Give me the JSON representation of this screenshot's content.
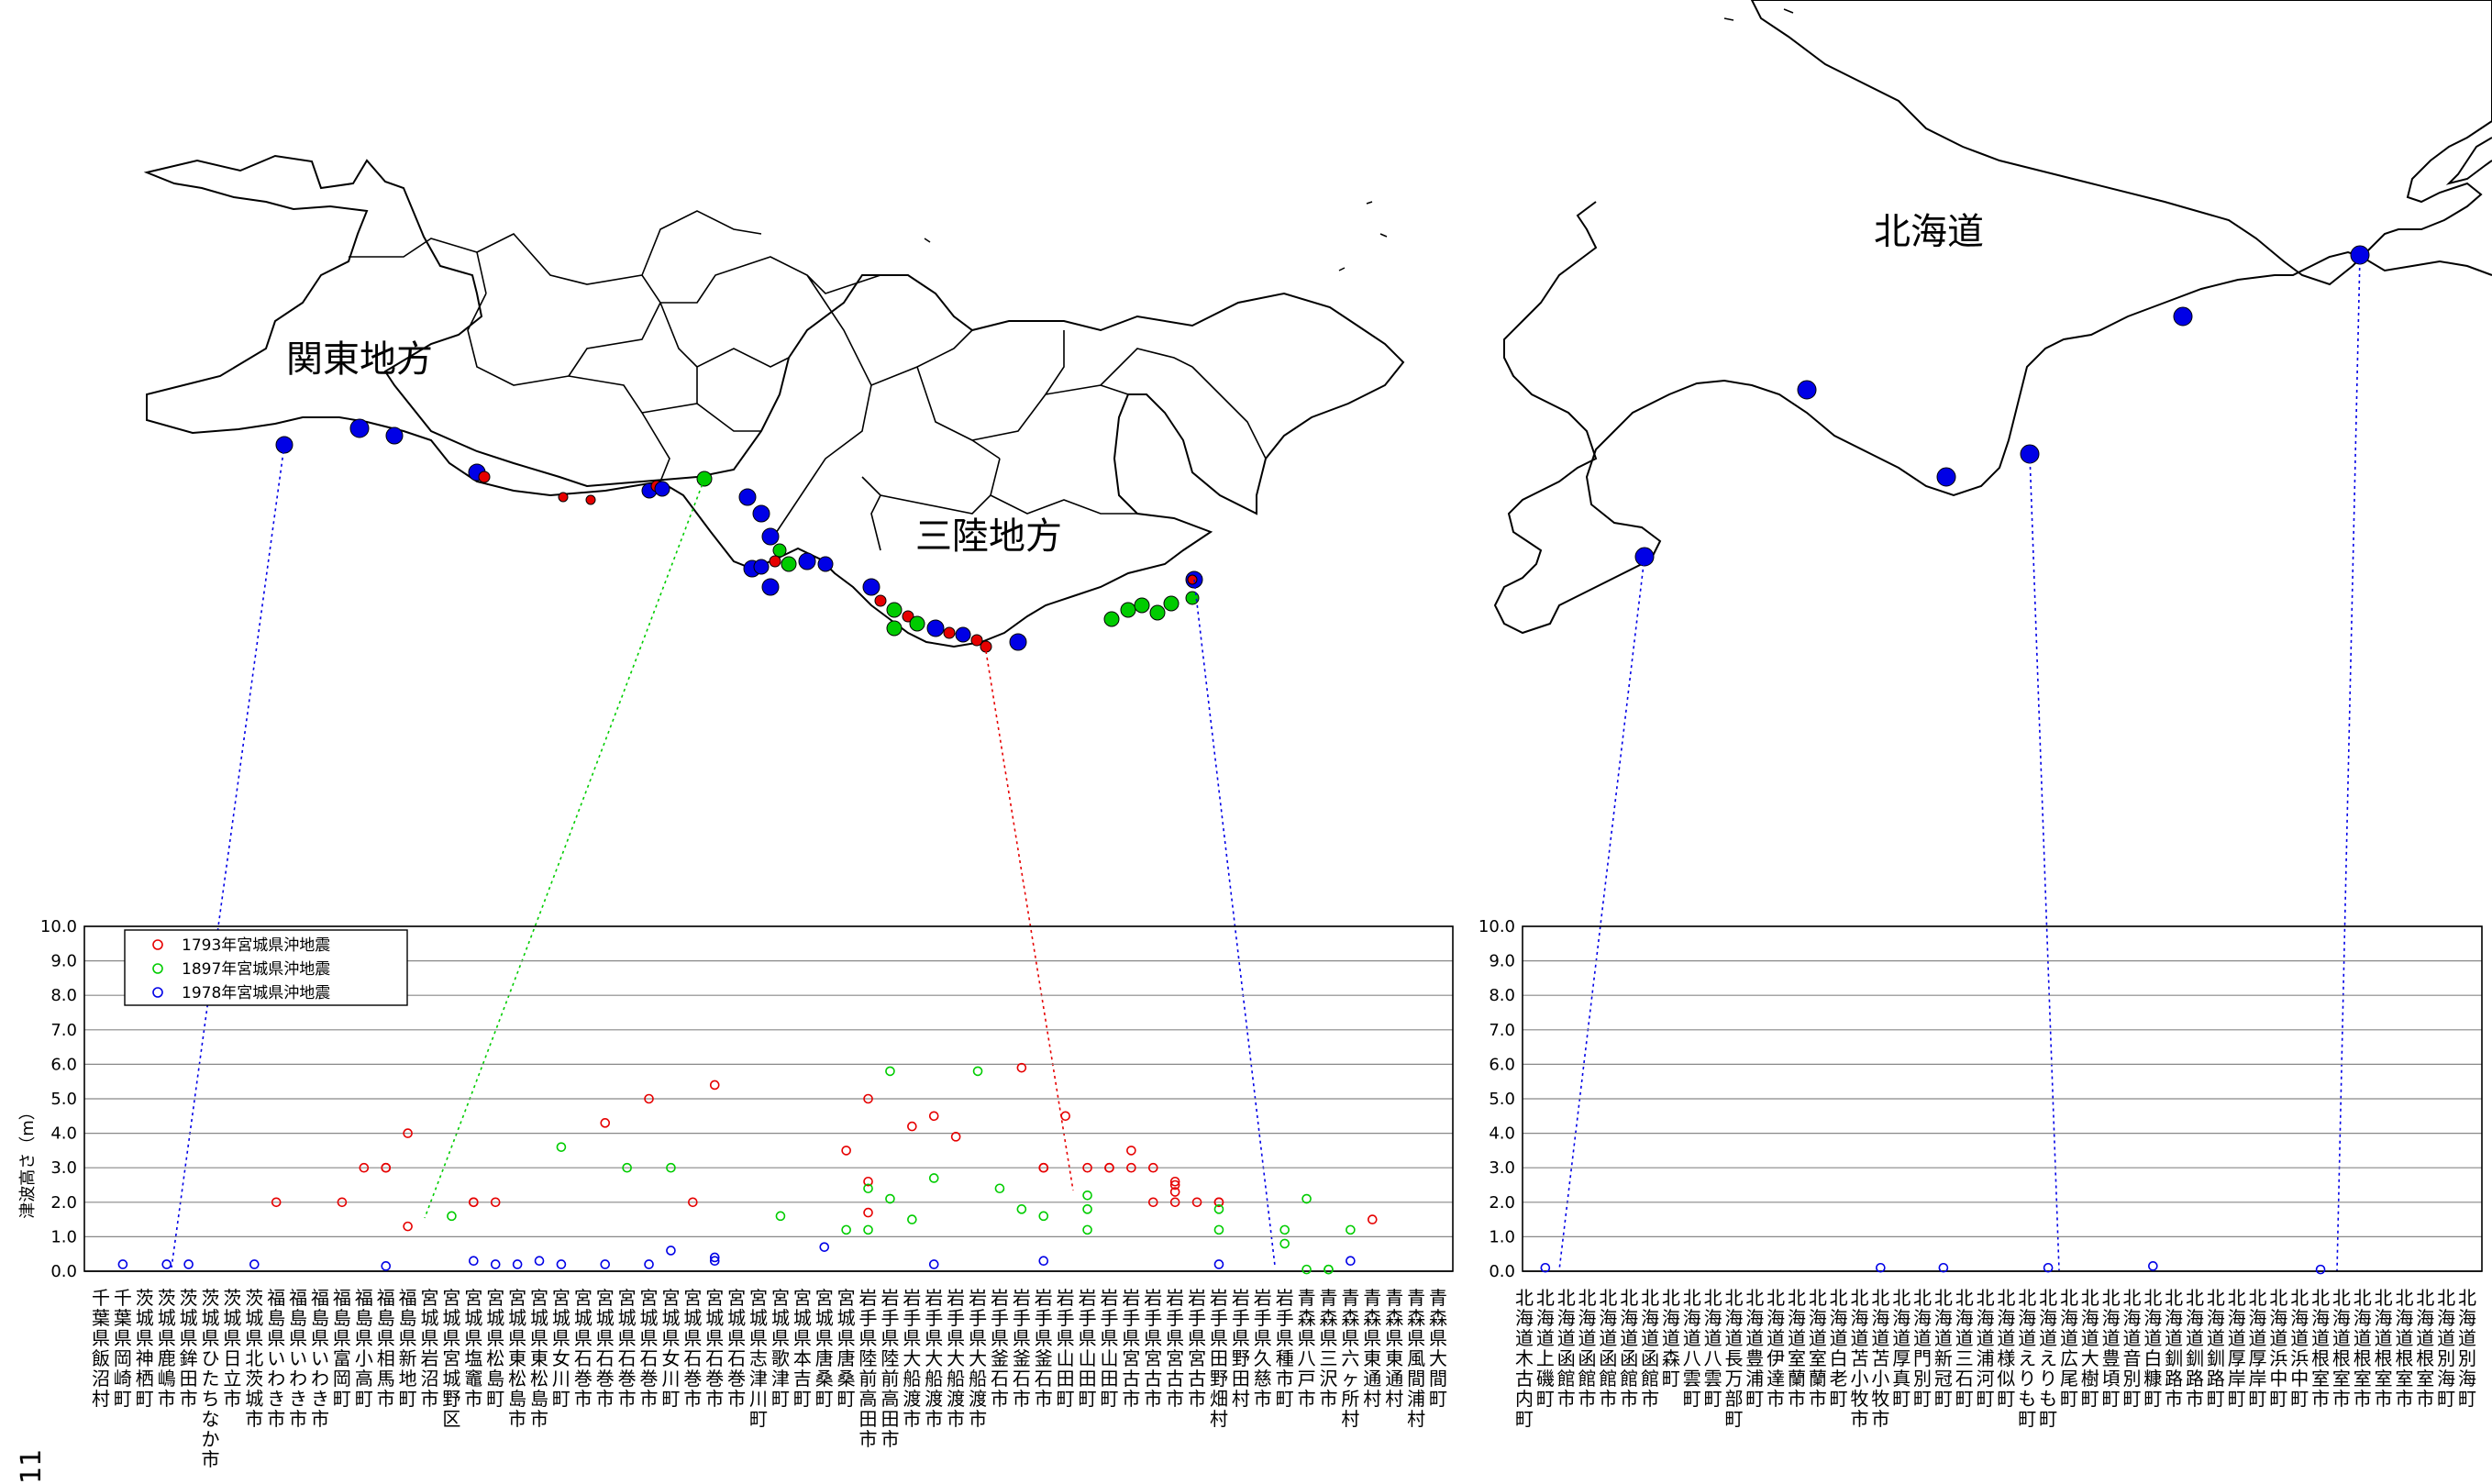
{
  "map": {
    "region_kanto": "関東地方",
    "region_sanriku": "三陸地方",
    "region_hokkaido": "北海道"
  },
  "page_number": "11",
  "chart_data": [
    {
      "type": "scatter",
      "ylabel": "津波高さ（m）",
      "ylim": [
        0,
        10
      ],
      "yticks": [
        "0.0",
        "1.0",
        "2.0",
        "3.0",
        "4.0",
        "5.0",
        "6.0",
        "7.0",
        "8.0",
        "9.0",
        "10.0"
      ],
      "grid": true,
      "legend_position": "top-left",
      "series": [
        {
          "name": "1793年宮城県沖地震",
          "color": "#e60000"
        },
        {
          "name": "1897年宮城県沖地震",
          "color": "#00cc00"
        },
        {
          "name": "1978年宮城県沖地震",
          "color": "#0000e6"
        }
      ],
      "categories": [
        "千葉県飯沼村",
        "千葉県岡崎町",
        "茨城県神栖町",
        "茨城県鹿嶋市",
        "茨城県鉾田市",
        "茨城県ひたちなか市",
        "茨城県日立市",
        "茨城県北茨城市",
        "福島県いわき市",
        "福島県いわき市",
        "福島県いわき市",
        "福島県富岡町",
        "福島県小高町",
        "福島県相馬市",
        "福島県新地町",
        "宮城県岩沼市",
        "宮城県宮城野区",
        "宮城県塩竈市",
        "宮城県松島町",
        "宮城県東松島市",
        "宮城県東松島市",
        "宮城県女川町",
        "宮城県石巻市",
        "宮城県石巻市",
        "宮城県石巻市",
        "宮城県石巻市",
        "宮城県女川町",
        "宮城県石巻市",
        "宮城県石巻市",
        "宮城県石巻市",
        "宮城県志津川町",
        "宮城県歌津町",
        "宮城県本吉町",
        "宮城県唐桑町",
        "宮城県唐桑町",
        "岩手県陸前高田市",
        "岩手県陸前高田市",
        "岩手県大船渡市",
        "岩手県大船渡市",
        "岩手県大船渡市",
        "岩手県大船渡市",
        "岩手県釜石市",
        "岩手県釜石市",
        "岩手県釜石市",
        "岩手県山田町",
        "岩手県山田町",
        "岩手県山田町",
        "岩手県宮古市",
        "岩手県宮古市",
        "岩手県宮古市",
        "岩手県宮古市",
        "岩手県田野畑村",
        "岩手県野田村",
        "岩手県久慈市",
        "岩手県種市町",
        "青森県八戸市",
        "青森県三沢市",
        "青森県六ヶ所村",
        "青森県東通村",
        "青森県東通村",
        "青森県風間浦村",
        "青森県大間町"
      ],
      "points": [
        {
          "series": 0,
          "x": 8,
          "y": 2.0
        },
        {
          "series": 0,
          "x": 11,
          "y": 2.0
        },
        {
          "series": 0,
          "x": 12,
          "y": 3.0
        },
        {
          "series": 0,
          "x": 13,
          "y": 3.0
        },
        {
          "series": 0,
          "x": 13,
          "y": 3.0
        },
        {
          "series": 0,
          "x": 14,
          "y": 4.0
        },
        {
          "series": 0,
          "x": 14,
          "y": 1.3
        },
        {
          "series": 0,
          "x": 17,
          "y": 2.0
        },
        {
          "series": 0,
          "x": 17,
          "y": 2.0
        },
        {
          "series": 0,
          "x": 18,
          "y": 2.0
        },
        {
          "series": 0,
          "x": 23,
          "y": 4.3
        },
        {
          "series": 0,
          "x": 25,
          "y": 5.0
        },
        {
          "series": 0,
          "x": 27,
          "y": 2.0
        },
        {
          "series": 0,
          "x": 28,
          "y": 5.4
        },
        {
          "series": 0,
          "x": 34,
          "y": 3.5
        },
        {
          "series": 0,
          "x": 35,
          "y": 5.0
        },
        {
          "series": 0,
          "x": 35,
          "y": 2.6
        },
        {
          "series": 0,
          "x": 35,
          "y": 1.7
        },
        {
          "series": 0,
          "x": 37,
          "y": 4.2
        },
        {
          "series": 0,
          "x": 38,
          "y": 4.5
        },
        {
          "series": 0,
          "x": 39,
          "y": 3.9
        },
        {
          "series": 0,
          "x": 42,
          "y": 5.9
        },
        {
          "series": 0,
          "x": 43,
          "y": 3.0
        },
        {
          "series": 0,
          "x": 43,
          "y": 3.0
        },
        {
          "series": 0,
          "x": 44,
          "y": 4.5
        },
        {
          "series": 0,
          "x": 45,
          "y": 3.0
        },
        {
          "series": 0,
          "x": 46,
          "y": 3.0
        },
        {
          "series": 0,
          "x": 46,
          "y": 3.0
        },
        {
          "series": 0,
          "x": 47,
          "y": 3.0
        },
        {
          "series": 0,
          "x": 47,
          "y": 3.5
        },
        {
          "series": 0,
          "x": 48,
          "y": 3.0
        },
        {
          "series": 0,
          "x": 48,
          "y": 2.0
        },
        {
          "series": 0,
          "x": 49,
          "y": 2.5
        },
        {
          "series": 0,
          "x": 49,
          "y": 2.3
        },
        {
          "series": 0,
          "x": 49,
          "y": 2.6
        },
        {
          "series": 0,
          "x": 49,
          "y": 2.0
        },
        {
          "series": 0,
          "x": 50,
          "y": 2.0
        },
        {
          "series": 0,
          "x": 51,
          "y": 2.0
        },
        {
          "series": 0,
          "x": 51,
          "y": 2.0
        },
        {
          "series": 0,
          "x": 58,
          "y": 1.5
        },
        {
          "series": 1,
          "x": 16,
          "y": 1.6
        },
        {
          "series": 1,
          "x": 21,
          "y": 3.6
        },
        {
          "series": 1,
          "x": 24,
          "y": 3.0
        },
        {
          "series": 1,
          "x": 26,
          "y": 3.0
        },
        {
          "series": 1,
          "x": 31,
          "y": 1.6
        },
        {
          "series": 1,
          "x": 34,
          "y": 1.2
        },
        {
          "series": 1,
          "x": 35,
          "y": 2.4
        },
        {
          "series": 1,
          "x": 35,
          "y": 1.2
        },
        {
          "series": 1,
          "x": 36,
          "y": 5.8
        },
        {
          "series": 1,
          "x": 36,
          "y": 2.1
        },
        {
          "series": 1,
          "x": 37,
          "y": 1.5
        },
        {
          "series": 1,
          "x": 38,
          "y": 2.7
        },
        {
          "series": 1,
          "x": 40,
          "y": 5.8
        },
        {
          "series": 1,
          "x": 41,
          "y": 2.4
        },
        {
          "series": 1,
          "x": 42,
          "y": 1.8
        },
        {
          "series": 1,
          "x": 43,
          "y": 1.6
        },
        {
          "series": 1,
          "x": 45,
          "y": 2.2
        },
        {
          "series": 1,
          "x": 45,
          "y": 1.8
        },
        {
          "series": 1,
          "x": 45,
          "y": 1.2
        },
        {
          "series": 1,
          "x": 51,
          "y": 1.8
        },
        {
          "series": 1,
          "x": 51,
          "y": 1.2
        },
        {
          "series": 1,
          "x": 54,
          "y": 1.2
        },
        {
          "series": 1,
          "x": 54,
          "y": 0.8
        },
        {
          "series": 1,
          "x": 55,
          "y": 2.1
        },
        {
          "series": 1,
          "x": 55,
          "y": 0.05
        },
        {
          "series": 1,
          "x": 56,
          "y": 0.05
        },
        {
          "series": 1,
          "x": 56,
          "y": 0.05
        },
        {
          "series": 1,
          "x": 57,
          "y": 1.2
        },
        {
          "series": 2,
          "x": 1,
          "y": 0.2
        },
        {
          "series": 2,
          "x": 3,
          "y": 0.2
        },
        {
          "series": 2,
          "x": 4,
          "y": 0.2
        },
        {
          "series": 2,
          "x": 7,
          "y": 0.2
        },
        {
          "series": 2,
          "x": 13,
          "y": 0.15
        },
        {
          "series": 2,
          "x": 17,
          "y": 0.3
        },
        {
          "series": 2,
          "x": 18,
          "y": 0.2
        },
        {
          "series": 2,
          "x": 19,
          "y": 0.2
        },
        {
          "series": 2,
          "x": 20,
          "y": 0.3
        },
        {
          "series": 2,
          "x": 21,
          "y": 0.2
        },
        {
          "series": 2,
          "x": 23,
          "y": 0.2
        },
        {
          "series": 2,
          "x": 25,
          "y": 0.2
        },
        {
          "series": 2,
          "x": 26,
          "y": 0.6
        },
        {
          "series": 2,
          "x": 28,
          "y": 0.3
        },
        {
          "series": 2,
          "x": 28,
          "y": 0.4
        },
        {
          "series": 2,
          "x": 33,
          "y": 0.7
        },
        {
          "series": 2,
          "x": 38,
          "y": 0.2
        },
        {
          "series": 2,
          "x": 43,
          "y": 0.3
        },
        {
          "series": 2,
          "x": 51,
          "y": 0.2
        },
        {
          "series": 2,
          "x": 57,
          "y": 0.3
        }
      ]
    },
    {
      "type": "scatter",
      "ylabel": "",
      "ylim": [
        0,
        10
      ],
      "yticks": [
        "0.0",
        "1.0",
        "2.0",
        "3.0",
        "4.0",
        "5.0",
        "6.0",
        "7.0",
        "8.0",
        "9.0",
        "10.0"
      ],
      "grid": true,
      "categories": [
        "北海道木古内町",
        "北海道上磯町",
        "北海道函館市",
        "北海道函館市",
        "北海道函館市",
        "北海道函館市",
        "北海道函館市",
        "北海道森町",
        "北海道八雲町",
        "北海道八雲町",
        "北海道長万部町",
        "北海道豊浦町",
        "北海道伊達市",
        "北海道室蘭市",
        "北海道室蘭市",
        "北海道白老町",
        "北海道苫小牧市",
        "北海道苫小牧市",
        "北海道厚真町",
        "北海道門別町",
        "北海道新冠町",
        "北海道三石町",
        "北海道浦河町",
        "北海道様似町",
        "北海道えりも町",
        "北海道えりも町",
        "北海道広尾町",
        "北海道大樹町",
        "北海道豊頃町",
        "北海道音別町",
        "北海道白糠町",
        "北海道釧路市",
        "北海道釧路市",
        "北海道釧路町",
        "北海道厚岸町",
        "北海道厚岸町",
        "北海道浜中町",
        "北海道浜中町",
        "北海道根室市",
        "北海道根室市",
        "北海道根室市",
        "北海道根室市",
        "北海道根室市",
        "北海道根室市",
        "北海道別海町",
        "北海道別海町"
      ],
      "points": [
        {
          "series": 2,
          "x": 1,
          "y": 0.1
        },
        {
          "series": 2,
          "x": 17,
          "y": 0.1
        },
        {
          "series": 2,
          "x": 20,
          "y": 0.1
        },
        {
          "series": 2,
          "x": 25,
          "y": 0.1
        },
        {
          "series": 2,
          "x": 30,
          "y": 0.15
        },
        {
          "series": 2,
          "x": 38,
          "y": 0.05
        }
      ]
    }
  ],
  "map_sites": {
    "kanto": [
      {
        "series": 2,
        "lon": 140.7,
        "lat": 35.72
      },
      {
        "series": 2,
        "lon": 140.85,
        "lat": 35.76
      },
      {
        "series": 2,
        "lon": 140.92,
        "lat": 35.75
      },
      {
        "series": 0,
        "lon": 141.0,
        "lat": 35.69
      },
      {
        "series": 2,
        "lon": 141.02,
        "lat": 35.67
      }
    ]
  }
}
